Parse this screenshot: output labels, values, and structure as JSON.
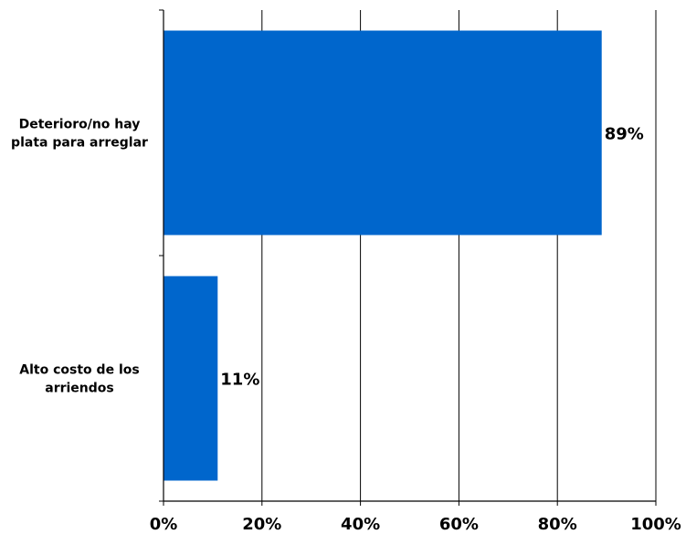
{
  "chart_data": {
    "type": "bar",
    "orientation": "horizontal",
    "categories": [
      "Deterioro/no hay plata para arreglar",
      "Alto costo de los arriendos"
    ],
    "category_lines": [
      [
        "Deterioro/no hay",
        "plata para arreglar"
      ],
      [
        "Alto costo de los",
        "arriendos"
      ]
    ],
    "values": [
      89,
      11
    ],
    "data_labels": [
      "89%",
      "11%"
    ],
    "xlim": [
      0,
      100
    ],
    "x_ticks": [
      0,
      20,
      40,
      60,
      80,
      100
    ],
    "x_tick_labels": [
      "0%",
      "20%",
      "40%",
      "60%",
      "80%",
      "100%"
    ],
    "grid": "vertical",
    "legend": "none",
    "bar_color": "#0066CC",
    "title": "",
    "xlabel": "",
    "ylabel": ""
  }
}
